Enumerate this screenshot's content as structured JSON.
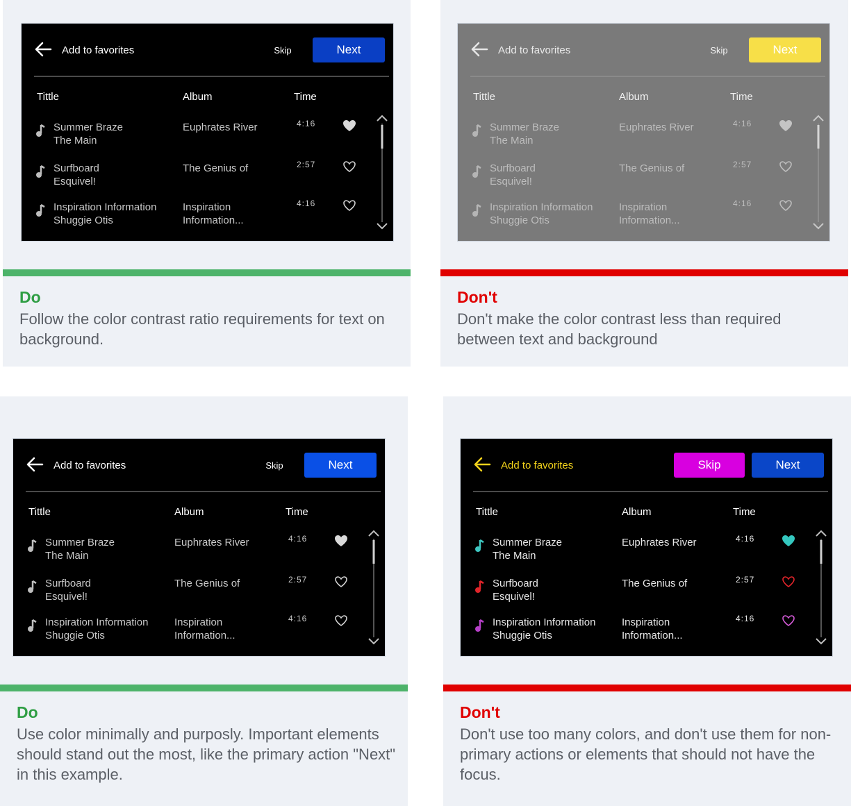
{
  "colors": {
    "do": "#2f9e44",
    "dont": "#e00000",
    "do_bar": "#4db36a",
    "dont_bar": "#e00000"
  },
  "panels": [
    {
      "verdict": "Do",
      "text": "Follow the color contrast ratio requirements for text on background.",
      "screen": {
        "bg": "#000000",
        "title": "Add to favorites",
        "skip": "Skip",
        "next": "Next",
        "next_bg": "#0a3fc4",
        "cols": {
          "title": "Tittle",
          "album": "Album",
          "time": "Time"
        },
        "rows": [
          {
            "title": "Summer Braze",
            "artist": "The Main",
            "album": "Euphrates River",
            "time": "4:16",
            "fav": true
          },
          {
            "title": "Surfboard",
            "artist": "Esquivel!",
            "album": "The Genius of",
            "time": "2:57",
            "fav": false
          },
          {
            "title": "Inspiration Information",
            "artist": "Shuggie Otis",
            "album": "Inspiration Information...",
            "time": "4:16",
            "fav": false
          }
        ]
      }
    },
    {
      "verdict": "Don't",
      "text": "Don't make the color contrast less than required between text and background",
      "screen": {
        "bg": "#7a7a7a",
        "title": "Add to favorites",
        "skip": "Skip",
        "next": "Next",
        "next_bg": "#f7df48",
        "cols": {
          "title": "Tittle",
          "album": "Album",
          "time": "Time"
        },
        "rows": [
          {
            "title": "Summer Braze",
            "artist": "The Main",
            "album": "Euphrates River",
            "time": "4:16",
            "fav": true
          },
          {
            "title": "Surfboard",
            "artist": "Esquivel!",
            "album": "The Genius of",
            "time": "2:57",
            "fav": false
          },
          {
            "title": "Inspiration Information",
            "artist": "Shuggie Otis",
            "album": "Inspiration Information...",
            "time": "4:16",
            "fav": false
          }
        ]
      }
    },
    {
      "verdict": "Do",
      "text": "Use color minimally and purposly. Important elements should stand out the most, like the primary action \"Next\" in this example.",
      "screen": {
        "bg": "#000000",
        "title": "Add to favorites",
        "skip": "Skip",
        "next": "Next",
        "next_bg": "#0a50e6",
        "cols": {
          "title": "Tittle",
          "album": "Album",
          "time": "Time"
        },
        "rows": [
          {
            "title": "Summer Braze",
            "artist": "The Main",
            "album": "Euphrates River",
            "time": "4:16",
            "fav": true
          },
          {
            "title": "Surfboard",
            "artist": "Esquivel!",
            "album": "The Genius of",
            "time": "2:57",
            "fav": false
          },
          {
            "title": "Inspiration Information",
            "artist": "Shuggie Otis",
            "album": "Inspiration Information...",
            "time": "4:16",
            "fav": false
          }
        ]
      }
    },
    {
      "verdict": "Don't",
      "text": "Don't use too many colors, and don't use them for non-primary actions or elements that should not have the focus.",
      "screen": {
        "bg": "#000000",
        "title": "Add to favorites",
        "skip": "Skip",
        "next": "Next",
        "next_bg": "#0a46c8",
        "cols": {
          "title": "Tittle",
          "album": "Album",
          "time": "Time"
        },
        "rows": [
          {
            "title": "Summer Braze",
            "artist": "The Main",
            "album": "Euphrates River",
            "time": "4:16",
            "fav": true
          },
          {
            "title": "Surfboard",
            "artist": "Esquivel!",
            "album": "The Genius of",
            "time": "2:57",
            "fav": false
          },
          {
            "title": "Inspiration Information",
            "artist": "Shuggie Otis",
            "album": "Inspiration Information...",
            "time": "4:16",
            "fav": false
          }
        ]
      }
    }
  ]
}
